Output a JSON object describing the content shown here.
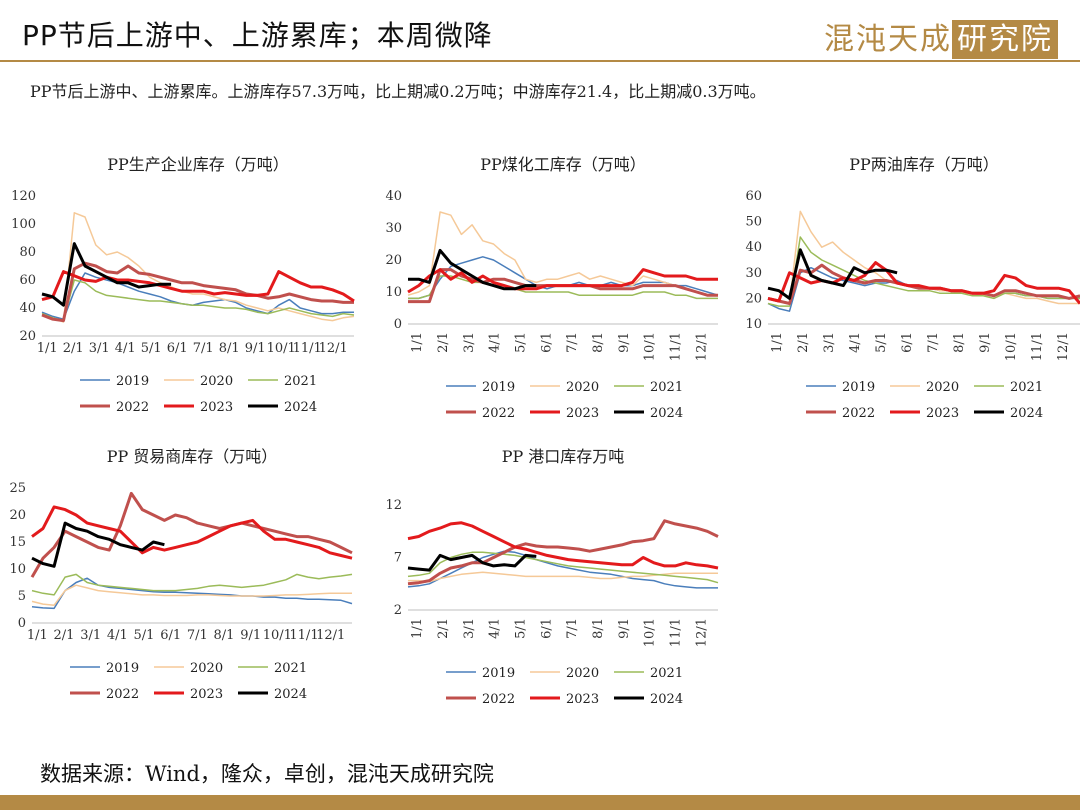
{
  "header": {
    "title": "PP节后上游中、上游累库；本周微降",
    "logo_text": "混沌天成",
    "logo_boxed": "研究院"
  },
  "summary": "PP节后上游中、上游累库。上游库存57.3万吨，比上期减0.2万吨；中游库存21.4，比上期减0.3万吨。",
  "footer": {
    "source": "数据来源：Wind，隆众，卓创，混沌天成研究院"
  },
  "colors": {
    "brand": "#b48a45",
    "2019": "#4a7ebb",
    "2020": "#f5c998",
    "2021": "#9bbb59",
    "2022": "#c0504d",
    "2023": "#e31a1c",
    "2024": "#000000"
  },
  "chart_data": [
    {
      "type": "line",
      "title": "PP生产企业库存（万吨）",
      "ylim": [
        20,
        120
      ],
      "yticks": [
        20,
        40,
        60,
        80,
        100,
        120
      ],
      "x_tick_labels": [
        "1/1",
        "2/1",
        "3/1",
        "4/1",
        "5/1",
        "6/1",
        "7/1",
        "8/1",
        "9/1",
        "10/1",
        "11/1",
        "12/1"
      ],
      "x_rotated": false,
      "legend_position": "bottom",
      "series": [
        {
          "name": "2019",
          "values": [
            37,
            34,
            32,
            52,
            65,
            62,
            60,
            58,
            55,
            52,
            50,
            48,
            45,
            43,
            42,
            44,
            45,
            46,
            44,
            40,
            38,
            36,
            42,
            46,
            40,
            38,
            36,
            36,
            37,
            37
          ]
        },
        {
          "name": "2020",
          "values": [
            35,
            33,
            30,
            108,
            105,
            85,
            78,
            80,
            76,
            70,
            62,
            58,
            55,
            52,
            50,
            50,
            48,
            46,
            45,
            42,
            40,
            38,
            40,
            38,
            36,
            34,
            32,
            31,
            33,
            34
          ]
        },
        {
          "name": "2021",
          "values": [
            36,
            33,
            31,
            60,
            58,
            52,
            49,
            48,
            47,
            46,
            45,
            45,
            44,
            43,
            42,
            42,
            41,
            40,
            40,
            39,
            37,
            36,
            38,
            40,
            38,
            36,
            35,
            34,
            36,
            35
          ]
        },
        {
          "name": "2022",
          "values": [
            35,
            32,
            31,
            68,
            72,
            70,
            66,
            65,
            70,
            65,
            64,
            62,
            60,
            58,
            58,
            56,
            55,
            54,
            53,
            50,
            49,
            47,
            48,
            50,
            48,
            46,
            45,
            45,
            44,
            44
          ]
        },
        {
          "name": "2023",
          "values": [
            46,
            48,
            66,
            63,
            60,
            59,
            62,
            60,
            60,
            59,
            58,
            56,
            54,
            52,
            52,
            52,
            50,
            51,
            50,
            49,
            49,
            50,
            66,
            62,
            58,
            55,
            55,
            53,
            50,
            45
          ]
        },
        {
          "name": "2024",
          "values": [
            50,
            48,
            42,
            86,
            70,
            66,
            62,
            58,
            58,
            55,
            56,
            57,
            57
          ]
        }
      ]
    },
    {
      "type": "line",
      "title": "PP煤化工库存（万吨）",
      "ylim": [
        0,
        40
      ],
      "yticks": [
        0,
        10,
        20,
        30,
        40
      ],
      "x_tick_labels": [
        "1/1",
        "2/1",
        "3/1",
        "4/1",
        "5/1",
        "6/1",
        "7/1",
        "8/1",
        "9/1",
        "10/1",
        "11/1",
        "12/1"
      ],
      "x_rotated": true,
      "legend_position": "bottom",
      "series": [
        {
          "name": "2019",
          "values": [
            8,
            8,
            9,
            14,
            18,
            19,
            20,
            21,
            20,
            18,
            16,
            14,
            12,
            11,
            12,
            12,
            13,
            12,
            12,
            13,
            12,
            12,
            13,
            13,
            13,
            12,
            12,
            11,
            10,
            9
          ]
        },
        {
          "name": "2020",
          "values": [
            9,
            10,
            12,
            35,
            34,
            28,
            31,
            26,
            25,
            22,
            20,
            14,
            13,
            14,
            14,
            15,
            16,
            14,
            15,
            14,
            13,
            12,
            15,
            14,
            13,
            12,
            11,
            10,
            9,
            9
          ]
        },
        {
          "name": "2021",
          "values": [
            8,
            8,
            9,
            15,
            15,
            14,
            13,
            13,
            12,
            12,
            11,
            10,
            10,
            10,
            10,
            10,
            9,
            9,
            9,
            9,
            9,
            9,
            10,
            10,
            10,
            9,
            9,
            8,
            8,
            8
          ]
        },
        {
          "name": "2022",
          "values": [
            7,
            7,
            7,
            17,
            17,
            15,
            14,
            13,
            14,
            14,
            13,
            12,
            12,
            12,
            12,
            12,
            12,
            12,
            11,
            11,
            11,
            11,
            12,
            12,
            12,
            12,
            11,
            10,
            9,
            9
          ]
        },
        {
          "name": "2023",
          "values": [
            10,
            12,
            15,
            17,
            14,
            16,
            13,
            15,
            13,
            12,
            11,
            11,
            11,
            12,
            12,
            12,
            12,
            12,
            12,
            12,
            12,
            13,
            17,
            16,
            15,
            15,
            15,
            14,
            14,
            14
          ]
        },
        {
          "name": "2024",
          "values": [
            14,
            14,
            13,
            23,
            19,
            17,
            15,
            13,
            12,
            11,
            11,
            12,
            12
          ]
        }
      ]
    },
    {
      "type": "line",
      "title": "PP两油库存（万吨）",
      "ylim": [
        10,
        60
      ],
      "yticks": [
        10,
        20,
        30,
        40,
        50,
        60
      ],
      "x_tick_labels": [
        "1/1",
        "2/1",
        "3/1",
        "4/1",
        "5/1",
        "6/1",
        "7/1",
        "8/1",
        "9/1",
        "10/1",
        "11/1",
        "12/1"
      ],
      "x_rotated": true,
      "legend_position": "bottom",
      "series": [
        {
          "name": "2019",
          "values": [
            18,
            16,
            15,
            30,
            32,
            30,
            28,
            27,
            26,
            25,
            26,
            26,
            27,
            25,
            24,
            24,
            23,
            23,
            22,
            22,
            22,
            21,
            22,
            22,
            21,
            21,
            20,
            20,
            20,
            20
          ]
        },
        {
          "name": "2020",
          "values": [
            20,
            19,
            18,
            54,
            46,
            40,
            42,
            38,
            35,
            32,
            30,
            27,
            26,
            25,
            24,
            24,
            23,
            23,
            22,
            22,
            21,
            21,
            22,
            21,
            20,
            20,
            19,
            18,
            18,
            18
          ]
        },
        {
          "name": "2021",
          "values": [
            18,
            17,
            17,
            44,
            38,
            35,
            33,
            31,
            29,
            27,
            26,
            25,
            24,
            23,
            23,
            23,
            22,
            22,
            22,
            21,
            21,
            20,
            22,
            22,
            21,
            21,
            20,
            20,
            20,
            20
          ]
        },
        {
          "name": "2022",
          "values": [
            20,
            19,
            18,
            31,
            30,
            33,
            30,
            28,
            27,
            26,
            27,
            27,
            26,
            25,
            24,
            24,
            24,
            23,
            23,
            22,
            22,
            21,
            23,
            23,
            22,
            21,
            21,
            21,
            20,
            21
          ]
        },
        {
          "name": "2023",
          "values": [
            20,
            19,
            30,
            28,
            26,
            27,
            26,
            28,
            27,
            29,
            34,
            31,
            26,
            25,
            25,
            24,
            24,
            23,
            23,
            22,
            22,
            23,
            29,
            28,
            25,
            24,
            24,
            24,
            23,
            18
          ]
        },
        {
          "name": "2024",
          "values": [
            24,
            23,
            20,
            39,
            29,
            27,
            26,
            25,
            32,
            30,
            31,
            31,
            30
          ]
        }
      ]
    },
    {
      "type": "line",
      "title": "PP 贸易商库存（万吨）",
      "ylim": [
        0,
        25
      ],
      "yticks": [
        0,
        5,
        10,
        15,
        20,
        25
      ],
      "x_tick_labels": [
        "1/1",
        "2/1",
        "3/1",
        "4/1",
        "5/1",
        "6/1",
        "7/1",
        "8/1",
        "9/1",
        "10/1",
        "11/1",
        "12/1"
      ],
      "x_rotated": false,
      "legend_position": "bottom",
      "series": [
        {
          "name": "2019",
          "values": [
            3,
            2.8,
            2.7,
            6,
            7.5,
            8.3,
            7,
            6.6,
            6.4,
            6.2,
            6,
            5.8,
            5.7,
            5.7,
            5.6,
            5.5,
            5.4,
            5.3,
            5.2,
            5,
            5,
            4.8,
            4.8,
            4.6,
            4.6,
            4.4,
            4.4,
            4.3,
            4.2,
            3.6
          ]
        },
        {
          "name": "2020",
          "values": [
            4,
            3.5,
            3.3,
            6,
            7,
            6.5,
            6,
            5.8,
            5.6,
            5.4,
            5.2,
            5.2,
            5.1,
            5.1,
            5.1,
            5.2,
            5.2,
            5.1,
            5,
            5,
            5,
            5,
            5.1,
            5.2,
            5.2,
            5.3,
            5.4,
            5.5,
            5.5,
            5.5
          ]
        },
        {
          "name": "2021",
          "values": [
            6,
            5.5,
            5.2,
            8.5,
            9,
            7.5,
            7,
            6.8,
            6.6,
            6.4,
            6.2,
            6,
            6,
            6,
            6.2,
            6.4,
            6.8,
            7,
            6.8,
            6.6,
            6.8,
            7,
            7.5,
            8,
            9,
            8.5,
            8.2,
            8.5,
            8.7,
            9
          ]
        },
        {
          "name": "2022",
          "values": [
            8.5,
            12,
            14,
            17,
            16,
            15,
            14,
            13.5,
            18,
            24,
            21,
            20,
            19,
            20,
            19.5,
            18.5,
            18,
            17.5,
            18,
            18.5,
            18,
            17.5,
            17,
            16.5,
            16,
            16,
            15.5,
            15,
            14,
            13
          ]
        },
        {
          "name": "2023",
          "values": [
            16,
            17.5,
            21.5,
            21,
            20,
            18.5,
            18,
            17.5,
            17,
            15,
            13,
            14,
            13.5,
            14,
            14.5,
            15,
            16,
            17,
            18,
            18.5,
            19,
            17,
            15.5,
            15.5,
            15,
            14.5,
            14,
            13,
            12.5,
            12
          ]
        },
        {
          "name": "2024",
          "values": [
            12,
            11,
            10.5,
            18.5,
            17.5,
            17,
            16,
            15.5,
            14.5,
            14,
            13.5,
            15,
            14.5
          ]
        }
      ]
    },
    {
      "type": "line",
      "title": "PP 港口库存万吨",
      "ylim": [
        2,
        12
      ],
      "yticks": [
        2,
        7,
        12
      ],
      "x_tick_labels": [
        "1/1",
        "2/1",
        "3/1",
        "4/1",
        "5/1",
        "6/1",
        "7/1",
        "8/1",
        "9/1",
        "10/1",
        "11/1",
        "12/1"
      ],
      "x_rotated": true,
      "legend_position": "bottom",
      "series": [
        {
          "name": "2019",
          "values": [
            4.2,
            4.3,
            4.5,
            5,
            5.5,
            6,
            6.5,
            7,
            7.3,
            7.6,
            7.5,
            7.2,
            6.8,
            6.5,
            6.2,
            6,
            5.8,
            5.6,
            5.5,
            5.4,
            5.2,
            5,
            4.9,
            4.8,
            4.5,
            4.3,
            4.2,
            4.1,
            4.1,
            4.1
          ]
        },
        {
          "name": "2020",
          "values": [
            4.8,
            4.8,
            4.7,
            5,
            5.2,
            5.4,
            5.5,
            5.6,
            5.5,
            5.4,
            5.3,
            5.2,
            5.2,
            5.2,
            5.2,
            5.2,
            5.2,
            5.1,
            5,
            5,
            5.1,
            5.2,
            5.2,
            5.3,
            5.4,
            5.5,
            5.5,
            5.5,
            5.5,
            5.5
          ]
        },
        {
          "name": "2021",
          "values": [
            5.2,
            5.3,
            5.5,
            6.5,
            7,
            7.3,
            7.5,
            7.5,
            7.4,
            7.3,
            7.2,
            7,
            6.8,
            6.6,
            6.4,
            6.2,
            6.1,
            6,
            5.9,
            5.8,
            5.7,
            5.6,
            5.5,
            5.4,
            5.3,
            5.2,
            5.1,
            5,
            4.9,
            4.6
          ]
        },
        {
          "name": "2022",
          "values": [
            4.5,
            4.6,
            4.8,
            5.5,
            6,
            6.2,
            6.5,
            6.5,
            7,
            7.5,
            8,
            8.3,
            8.1,
            8,
            8,
            7.9,
            7.8,
            7.6,
            7.8,
            8,
            8.2,
            8.5,
            8.6,
            8.8,
            10.5,
            10.2,
            10,
            9.8,
            9.5,
            9
          ]
        },
        {
          "name": "2023",
          "values": [
            8.8,
            9,
            9.5,
            9.8,
            10.2,
            10.3,
            10,
            9.5,
            9,
            8.5,
            8,
            7.8,
            7.5,
            7.2,
            7,
            6.8,
            6.7,
            6.6,
            6.5,
            6.4,
            6.3,
            6.3,
            7,
            6.5,
            6.2,
            6.2,
            6.5,
            6.3,
            6.2,
            6
          ]
        },
        {
          "name": "2024",
          "values": [
            6,
            5.9,
            5.8,
            7.2,
            6.8,
            7,
            7.2,
            6.5,
            6.2,
            6.3,
            6.2,
            7.2,
            7.1
          ]
        }
      ]
    }
  ]
}
